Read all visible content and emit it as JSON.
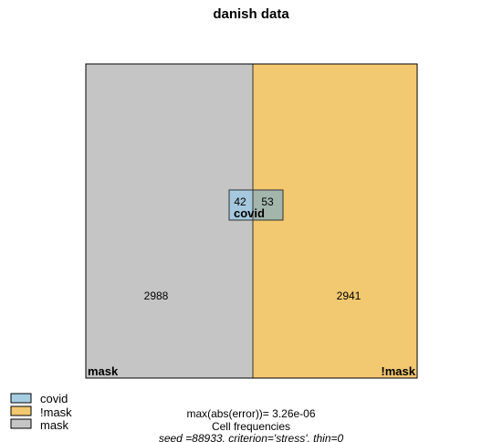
{
  "chart_data": {
    "type": "euler",
    "title": "danish data",
    "sets": [
      {
        "name": "covid",
        "color": "#A6CEE3",
        "label": "covid"
      },
      {
        "name": "!mask",
        "color": "#F2C870",
        "label": "!mask"
      },
      {
        "name": "mask",
        "color": "#C5C5C5",
        "label": "mask"
      }
    ],
    "regions": [
      {
        "sets": [
          "mask"
        ],
        "count": 2988
      },
      {
        "sets": [
          "!mask"
        ],
        "count": 2941
      },
      {
        "sets": [
          "covid",
          "mask"
        ],
        "count": 42
      },
      {
        "sets": [
          "covid",
          "!mask"
        ],
        "count": 53
      }
    ],
    "legend": {
      "placement": "bottom-left",
      "entries": [
        {
          "label": "covid",
          "color": "#A6CEE3"
        },
        {
          "label": "!mask",
          "color": "#F2C870"
        },
        {
          "label": "mask",
          "color": "#C5C5C5"
        }
      ]
    },
    "captions": {
      "error": "max(abs(error))= 3.26e-06",
      "frequencies": "Cell frequencies",
      "settings": "seed =88933, criterion='stress', thin=0"
    }
  }
}
